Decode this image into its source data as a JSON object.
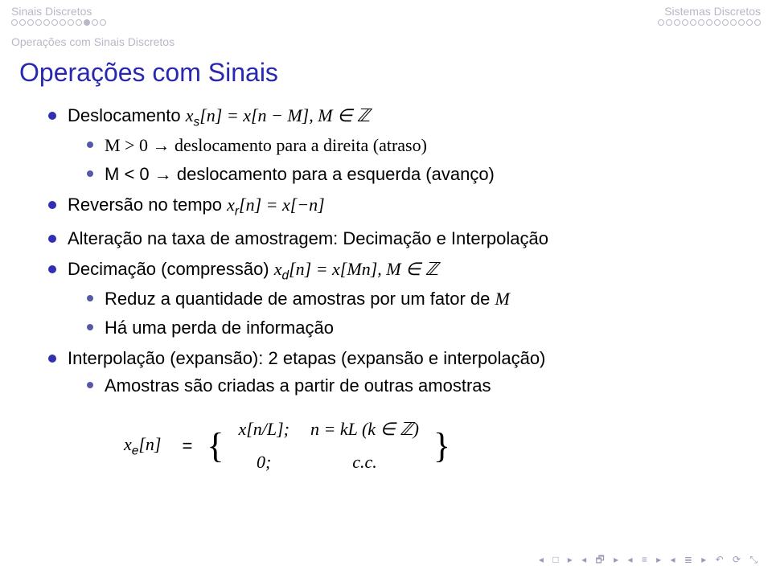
{
  "header": {
    "left": "Sinais Discretos",
    "right": "Sistemas Discretos"
  },
  "subheader": "Operações com Sinais Discretos",
  "title": "Operações com Sinais",
  "bullets": {
    "b1_pre": "Deslocamento ",
    "b1_math": "x",
    "b1_sub": "s",
    "b1_post": "[n] = x[n − M], M ∈ ℤ",
    "b1a": "M > 0 → deslocamento para a direita (atraso)",
    "b1b": "M < 0 → deslocamento para a esquerda (avanço)",
    "b2_pre": "Reversão no tempo ",
    "b2_math": "x",
    "b2_sub": "r",
    "b2_post": "[n] = x[−n]",
    "b3": "Alteração na taxa de amostragem: Decimação e Interpolação",
    "b4_pre": "Decimação (compressão) ",
    "b4_math": "x",
    "b4_sub": "d",
    "b4_post": "[n] = x[Mn], M ∈ ℤ",
    "b4a_pre": "Reduz a quantidade de amostras por um fator de ",
    "b4a_m": "M",
    "b4b": "Há uma perda de informação",
    "b5": "Interpolação (expansão): 2 etapas (expansão e interpolação)",
    "b5a": "Amostras são criadas a partir de outras amostras"
  },
  "equation": {
    "lhs_x": "x",
    "lhs_sub": "e",
    "lhs_post": "[n]",
    "eq": "=",
    "row1_l": "x[n/L];",
    "row1_r": "n = kL (k ∈ ℤ)",
    "row2_l": "0;",
    "row2_r": "c.c."
  },
  "nav": {
    "glyphs": "◂ □ ▸   ◂ 🗗 ▸   ◂ ≡ ▸   ◂ ≣ ▸   ↶ ⟳ ⤡"
  }
}
